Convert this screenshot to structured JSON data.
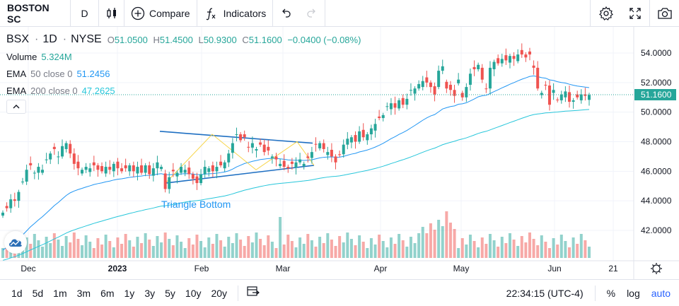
{
  "toolbar": {
    "symbol": "BOSTON SC",
    "interval": "D",
    "compare_label": "Compare",
    "indicators_label": "Indicators"
  },
  "legend": {
    "ticker": "BSX",
    "interval": "1D",
    "exchange": "NYSE",
    "open_label": "O",
    "open": "51.0500",
    "high_label": "H",
    "high": "51.4500",
    "low_label": "L",
    "low": "50.9300",
    "close_label": "C",
    "close": "51.1600",
    "change": "−0.0400 (−0.08%)",
    "volume_name": "Volume",
    "volume_value": "5.324M",
    "ema50_name": "EMA",
    "ema50_params": "50 close 0",
    "ema50_value": "51.2456",
    "ema200_name": "EMA",
    "ema200_params": "200 close 0",
    "ema200_value": "47.2625"
  },
  "annotation": {
    "triangle_label": "Triangle Bottom"
  },
  "colors": {
    "up": "#26a69a",
    "down": "#ef5350",
    "ema50": "#2196f3",
    "ema200": "#26c6da",
    "pattern": "#1e6fc2",
    "zigzag": "#f7d54a"
  },
  "price_axis": {
    "labels": [
      "54.0000",
      "52.0000",
      "50.0000",
      "48.0000",
      "46.0000",
      "44.0000",
      "42.0000"
    ],
    "last_price": "51.1600"
  },
  "time_axis": {
    "labels": [
      {
        "text": "Dec",
        "bold": false
      },
      {
        "text": "2023",
        "bold": true
      },
      {
        "text": "Feb",
        "bold": false
      },
      {
        "text": "Mar",
        "bold": false
      },
      {
        "text": "Apr",
        "bold": false
      },
      {
        "text": "May",
        "bold": false
      },
      {
        "text": "Jun",
        "bold": false
      },
      {
        "text": "21",
        "bold": false
      }
    ]
  },
  "bottombar": {
    "ranges": [
      "1d",
      "5d",
      "1m",
      "3m",
      "6m",
      "1y",
      "3y",
      "5y",
      "10y",
      "20y"
    ],
    "time": "22:34:15 (UTC-4)",
    "percent": "%",
    "log": "log",
    "auto": "auto"
  }
}
